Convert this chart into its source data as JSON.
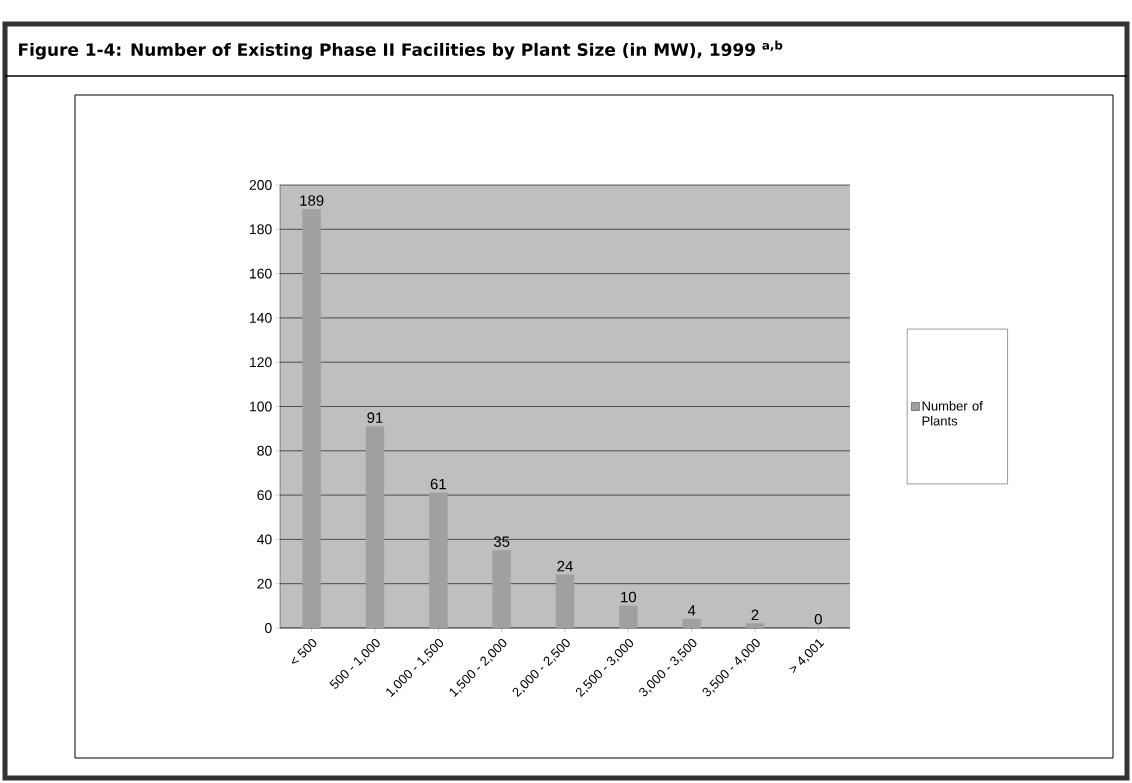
{
  "chart_data": {
    "type": "bar",
    "title": "Figure 1-4: Number of Existing Phase II Facilities by Plant Size (in MW), 1999 $^{a,b}$",
    "categories": [
      "< 500",
      "500 - 1,000",
      "1,000 - 1,500",
      "1,500 - 2,000",
      "2,000 - 2,500",
      "2,500 - 3,000",
      "3,000 - 3,500",
      "3,500 - 4,000",
      "> 4,001"
    ],
    "series": [
      {
        "name": "Number of Plants",
        "color": "#a0a0a0",
        "values": [
          189,
          91,
          61,
          35,
          24,
          10,
          4,
          2,
          0
        ]
      }
    ],
    "ylim": [
      0,
      200
    ],
    "yticks": [
      0,
      20,
      40,
      60,
      80,
      100,
      120,
      140,
      160,
      180,
      200
    ],
    "grid": "y",
    "legend": "right",
    "data_labels": true
  }
}
